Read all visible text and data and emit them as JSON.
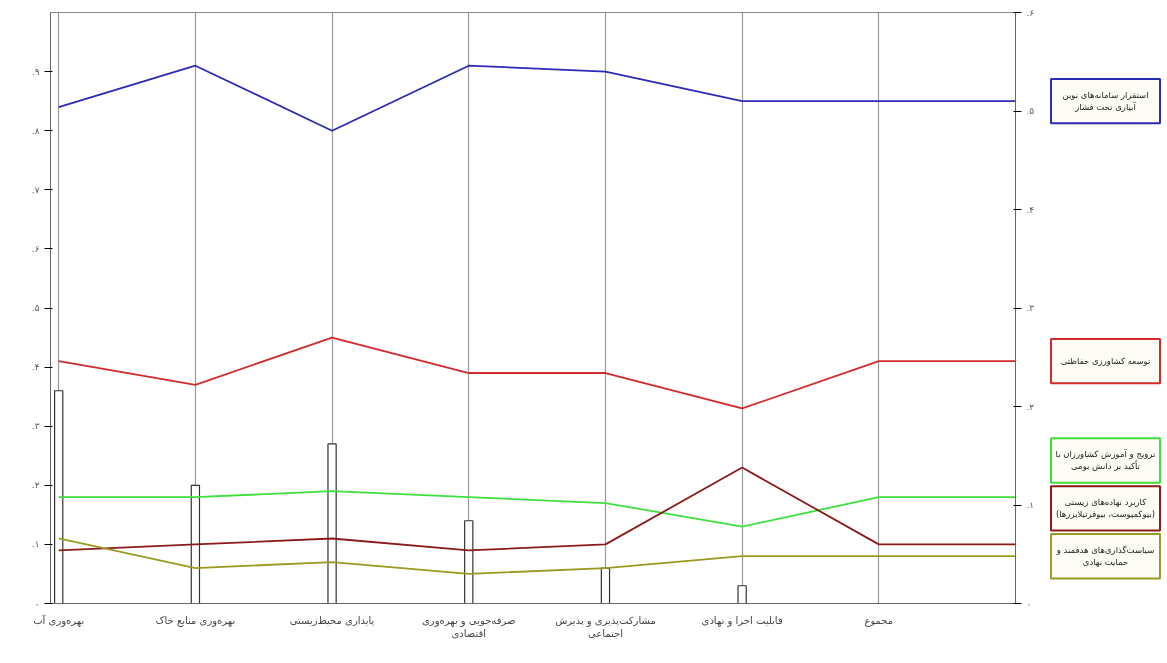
{
  "chart_data": {
    "type": "line",
    "categories": [
      "بهره‌وری آب",
      "بهره‌وری منابع خاک",
      "پایداری محیط‌زیستی",
      "صرفه‌جویی و بهره‌وری\nاقتصادی",
      "مشارکت‌پذیری و پذیرش\nاجتماعی",
      "قابلیت اجرا و نهادی",
      "مجموع",
      null
    ],
    "ylim": [
      0,
      1
    ],
    "yticks": [
      {
        "value": 0,
        "label": "۰"
      },
      {
        "value": 0.1,
        "label": ".۱"
      },
      {
        "value": 0.2,
        "label": ".۲"
      },
      {
        "value": 0.3,
        "label": ".۳"
      },
      {
        "value": 0.4,
        "label": ".۴"
      },
      {
        "value": 0.5,
        "label": ".۵"
      },
      {
        "value": 0.6,
        "label": ".۶"
      },
      {
        "value": 0.7,
        "label": ".۷"
      },
      {
        "value": 0.8,
        "label": ".۸"
      },
      {
        "value": 0.9,
        "label": ".۹"
      }
    ],
    "y2lim": [
      0,
      0.6
    ],
    "y2ticks": [
      {
        "value": 0,
        "label": "۰"
      },
      {
        "value": 0.1,
        "label": ".۱"
      },
      {
        "value": 0.2,
        "label": ".۲"
      },
      {
        "value": 0.3,
        "label": ".۳"
      },
      {
        "value": 0.4,
        "label": ".۴"
      },
      {
        "value": 0.5,
        "label": ".۵"
      },
      {
        "value": 0.6,
        "label": ".۶"
      }
    ],
    "grid": "x",
    "legend": "right",
    "series": [
      {
        "type": "bar",
        "color": "#333333",
        "values": [
          0.36,
          0.2,
          0.27,
          0.14,
          0.06,
          0.03,
          null,
          null
        ]
      },
      {
        "name": "استقرار سامانه‌های نوین آبیاری تحت فشار",
        "color": "#2a2ab4",
        "values": [
          0.84,
          0.91,
          0.8,
          0.91,
          0.9,
          0.85,
          0.85,
          0.85
        ]
      },
      {
        "name": "توسعه کشاورزی حفاظتی",
        "color": "#d02a2a",
        "values": [
          0.41,
          0.37,
          0.45,
          0.39,
          0.39,
          0.33,
          0.41,
          0.41
        ]
      },
      {
        "name": "ترویج و آموزش کشاورزان با تأکید بر دانش بومی",
        "color": "#3ee03e",
        "values": [
          0.18,
          0.18,
          0.19,
          0.18,
          0.17,
          0.13,
          0.18,
          0.18
        ]
      },
      {
        "name": "کاربرد نهاده‌های زیستی (بیوکمپوست، بیوفرتیلایزرها)",
        "color": "#8b1a1a",
        "values": [
          0.09,
          0.1,
          0.11,
          0.09,
          0.1,
          0.23,
          0.1,
          0.1
        ]
      },
      {
        "name": "سیاست‌گذاری‌های هدفمند و حمایت نهادی",
        "color": "#9a9a20",
        "values": [
          0.11,
          0.06,
          0.07,
          0.05,
          0.06,
          0.08,
          0.08,
          0.08
        ]
      }
    ]
  }
}
